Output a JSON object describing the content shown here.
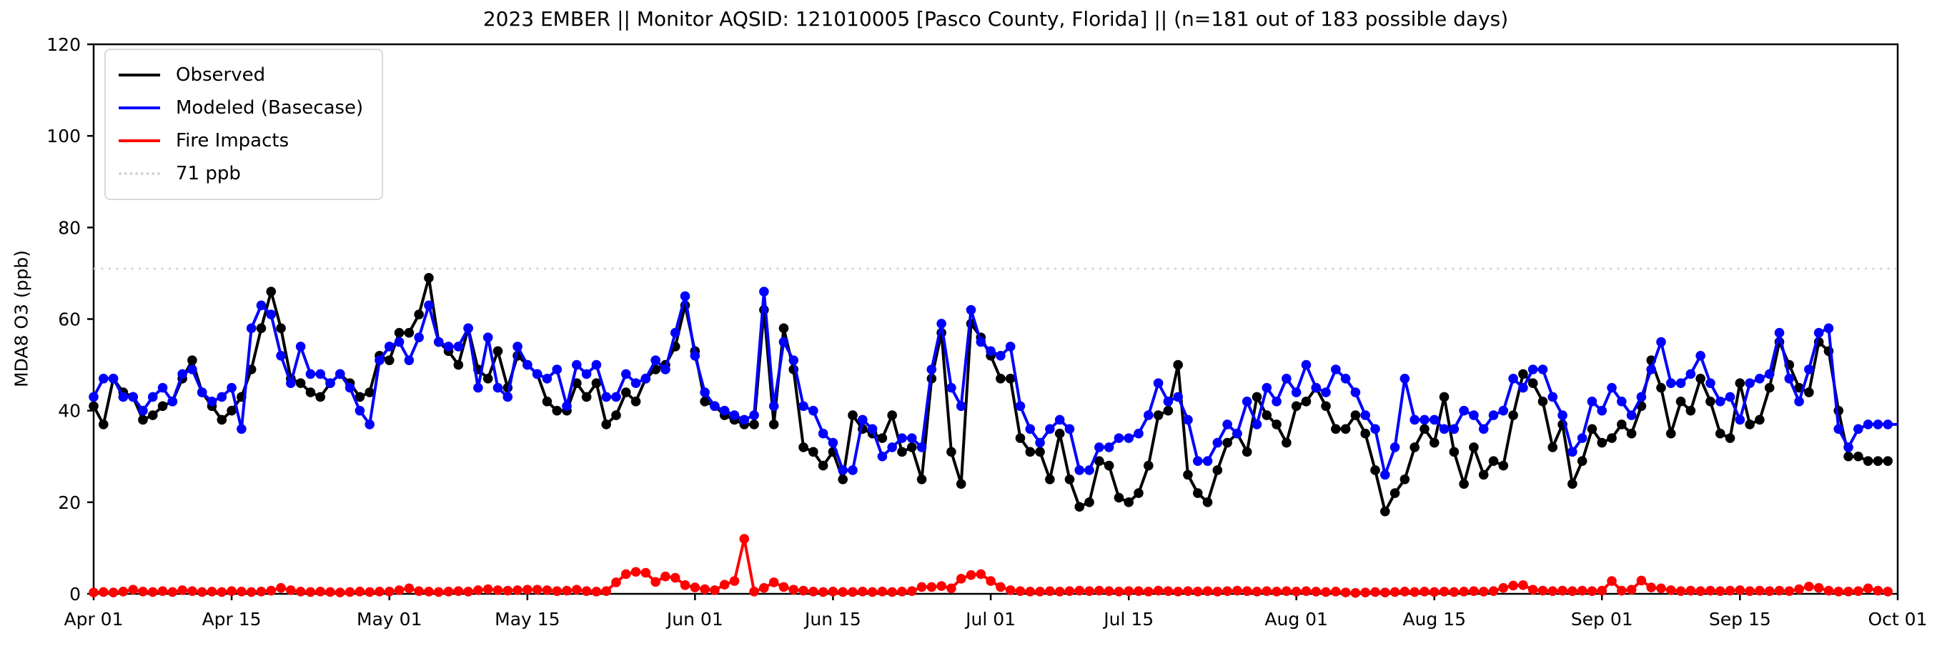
{
  "title": "2023 EMBER || Monitor AQSID: 121010005 [Pasco County, Florida] || (n=181 out of 183 possible days)",
  "y_axis_label": "MDA8 O3 (ppb)",
  "legend": {
    "observed_label": "Observed",
    "modeled_label": "Modeled (Basecase)",
    "fire_label": "Fire Impacts",
    "threshold_label": "71 ppb"
  },
  "chart_data": {
    "type": "line",
    "title": "2023 EMBER || Monitor AQSID: 121010005 [Pasco County, Florida] || (n=181 out of 183 possible days)",
    "xlabel": "",
    "ylabel": "MDA8 O3 (ppb)",
    "ylim": [
      0,
      120
    ],
    "yticks": [
      0,
      20,
      40,
      60,
      80,
      100,
      120
    ],
    "x_days_total": 183,
    "x_start": "Apr 01",
    "x_end": "Oct 01",
    "xticks": [
      {
        "day": 0,
        "label": "Apr 01"
      },
      {
        "day": 14,
        "label": "Apr 15"
      },
      {
        "day": 30,
        "label": "May 01"
      },
      {
        "day": 44,
        "label": "May 15"
      },
      {
        "day": 61,
        "label": "Jun 01"
      },
      {
        "day": 75,
        "label": "Jun 15"
      },
      {
        "day": 91,
        "label": "Jul 01"
      },
      {
        "day": 105,
        "label": "Jul 15"
      },
      {
        "day": 122,
        "label": "Aug 01"
      },
      {
        "day": 136,
        "label": "Aug 15"
      },
      {
        "day": 153,
        "label": "Sep 01"
      },
      {
        "day": 167,
        "label": "Sep 15"
      },
      {
        "day": 183,
        "label": "Oct 01"
      }
    ],
    "grid": false,
    "legend_position": "upper-left",
    "threshold": {
      "value": 71,
      "label": "71 ppb",
      "color": "#d4d4d4",
      "style": "dotted"
    },
    "series": [
      {
        "name": "Observed",
        "color": "#000000",
        "marker": "circle",
        "values": [
          41,
          37,
          47,
          44,
          43,
          38,
          39,
          41,
          42,
          47,
          51,
          44,
          41,
          38,
          40,
          43,
          49,
          58,
          66,
          58,
          47,
          46,
          44,
          43,
          46,
          48,
          46,
          43,
          44,
          52,
          51,
          57,
          57,
          61,
          69,
          55,
          53,
          50,
          58,
          49,
          47,
          53,
          45,
          52,
          50,
          48,
          42,
          40,
          40,
          46,
          43,
          46,
          37,
          39,
          44,
          42,
          47,
          49,
          50,
          54,
          63,
          53,
          42,
          41,
          39,
          38,
          37,
          37,
          62,
          37,
          58,
          49,
          32,
          31,
          28,
          31,
          25,
          39,
          36,
          35,
          34,
          39,
          31,
          32,
          25,
          47,
          57,
          31,
          24,
          59,
          56,
          52,
          47,
          47,
          34,
          31,
          31,
          25,
          35,
          25,
          19,
          20,
          29,
          28,
          21,
          20,
          22,
          28,
          39,
          40,
          50,
          26,
          22,
          20,
          27,
          33,
          35,
          31,
          43,
          39,
          37,
          33,
          41,
          42,
          45,
          41,
          36,
          36,
          39,
          35,
          27,
          18,
          22,
          25,
          32,
          36,
          33,
          43,
          31,
          24,
          32,
          26,
          29,
          28,
          39,
          48,
          46,
          42,
          32,
          37,
          24,
          29,
          36,
          33,
          34,
          37,
          35,
          41,
          51,
          45,
          35,
          42,
          40,
          47,
          42,
          35,
          34,
          46,
          37,
          38,
          45,
          55,
          50,
          45,
          44,
          55,
          53,
          40,
          30,
          30,
          29,
          29,
          29
        ]
      },
      {
        "name": "Modeled (Basecase)",
        "color": "#0000ff",
        "marker": "circle",
        "extend_to_edge": true,
        "values": [
          43,
          47,
          47,
          43,
          43,
          40,
          43,
          45,
          42,
          48,
          49,
          44,
          42,
          43,
          45,
          36,
          58,
          63,
          61,
          52,
          46,
          54,
          48,
          48,
          46,
          48,
          45,
          40,
          37,
          51,
          54,
          55,
          51,
          56,
          63,
          55,
          54,
          54,
          58,
          45,
          56,
          45,
          43,
          54,
          50,
          48,
          47,
          49,
          41,
          50,
          48,
          50,
          43,
          43,
          48,
          46,
          47,
          51,
          49,
          57,
          65,
          52,
          44,
          41,
          40,
          39,
          38,
          39,
          66,
          41,
          55,
          51,
          41,
          40,
          35,
          33,
          27,
          27,
          38,
          36,
          30,
          32,
          34,
          34,
          32,
          49,
          59,
          45,
          41,
          62,
          55,
          53,
          52,
          54,
          41,
          36,
          33,
          36,
          38,
          36,
          27,
          27,
          32,
          32,
          34,
          34,
          35,
          39,
          46,
          42,
          43,
          38,
          29,
          29,
          33,
          37,
          35,
          42,
          37,
          45,
          42,
          47,
          44,
          50,
          45,
          44,
          49,
          47,
          44,
          39,
          36,
          26,
          32,
          47,
          38,
          38,
          38,
          36,
          36,
          40,
          39,
          36,
          39,
          40,
          47,
          45,
          49,
          49,
          43,
          39,
          31,
          34,
          42,
          40,
          45,
          42,
          39,
          43,
          49,
          55,
          46,
          46,
          48,
          52,
          46,
          42,
          43,
          38,
          46,
          47,
          48,
          57,
          47,
          42,
          49,
          57,
          58,
          36,
          32,
          36,
          37,
          37,
          37
        ]
      },
      {
        "name": "Fire Impacts",
        "color": "#ff0000",
        "marker": "circle",
        "values": [
          0.3,
          0.4,
          0.3,
          0.5,
          0.9,
          0.5,
          0.4,
          0.6,
          0.4,
          0.8,
          0.6,
          0.4,
          0.5,
          0.4,
          0.6,
          0.5,
          0.4,
          0.5,
          0.7,
          1.3,
          0.8,
          0.5,
          0.4,
          0.5,
          0.4,
          0.3,
          0.4,
          0.5,
          0.4,
          0.5,
          0.5,
          0.8,
          1.2,
          0.6,
          0.5,
          0.4,
          0.5,
          0.6,
          0.5,
          0.8,
          1.0,
          0.8,
          0.7,
          0.8,
          0.9,
          0.9,
          0.8,
          0.6,
          0.7,
          0.9,
          0.6,
          0.5,
          0.6,
          2.5,
          4.3,
          4.8,
          4.6,
          2.6,
          3.8,
          3.5,
          1.9,
          1.4,
          1.0,
          0.8,
          2.0,
          2.8,
          12.0,
          0.5,
          1.3,
          2.5,
          1.5,
          0.9,
          0.7,
          0.5,
          0.4,
          0.5,
          0.4,
          0.4,
          0.5,
          0.4,
          0.5,
          0.4,
          0.5,
          0.6,
          1.5,
          1.5,
          1.7,
          1.2,
          3.3,
          4.1,
          4.3,
          2.8,
          1.5,
          0.8,
          0.6,
          0.5,
          0.5,
          0.6,
          0.5,
          0.6,
          0.7,
          0.6,
          0.7,
          0.6,
          0.5,
          0.6,
          0.6,
          0.5,
          0.7,
          0.6,
          0.5,
          0.6,
          0.5,
          0.6,
          0.5,
          0.6,
          0.7,
          0.6,
          0.5,
          0.6,
          0.5,
          0.6,
          0.5,
          0.6,
          0.5,
          0.4,
          0.5,
          0.3,
          0.2,
          0.3,
          0.4,
          0.3,
          0.4,
          0.5,
          0.4,
          0.5,
          0.4,
          0.5,
          0.4,
          0.5,
          0.6,
          0.5,
          0.6,
          1.3,
          1.8,
          1.9,
          0.9,
          0.7,
          0.6,
          0.7,
          0.6,
          0.7,
          0.6,
          0.7,
          2.8,
          0.7,
          0.9,
          2.9,
          1.4,
          1.2,
          0.8,
          0.6,
          0.7,
          0.6,
          0.7,
          0.6,
          0.7,
          0.8,
          0.6,
          0.7,
          0.6,
          0.7,
          0.6,
          1.0,
          1.6,
          1.3,
          0.7,
          0.5,
          0.5,
          0.6,
          1.2,
          0.7,
          0.5
        ]
      }
    ]
  }
}
